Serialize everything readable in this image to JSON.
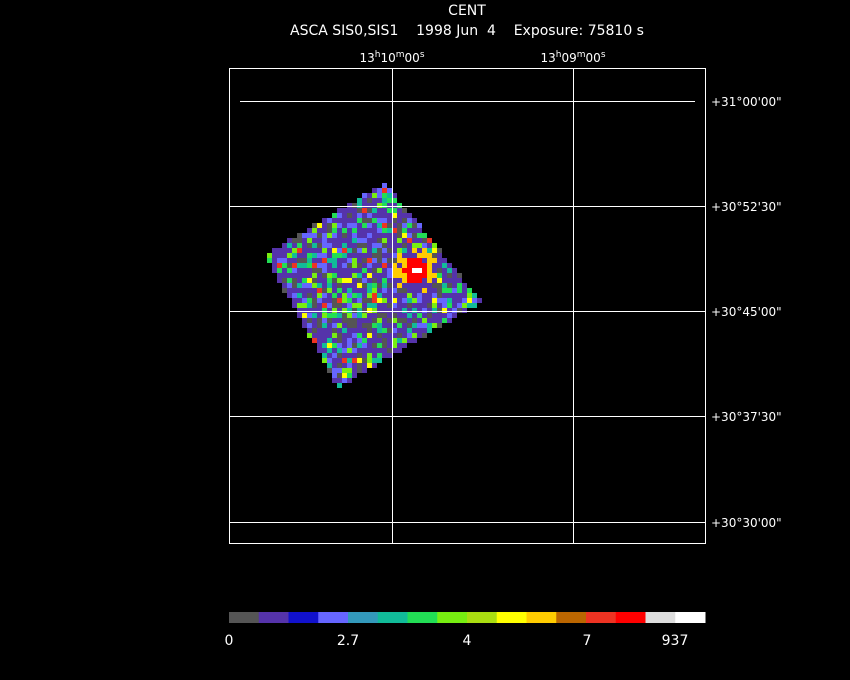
{
  "header": {
    "title": "CENT",
    "subtitle": "ASCA SIS0,SIS1    1998 Jun  4    Exposure: 75810 s"
  },
  "ra_labels": [
    [
      "13",
      "h",
      "10",
      "m",
      "00",
      "s"
    ],
    [
      "13",
      "h",
      "09",
      "m",
      "00",
      "s"
    ]
  ],
  "dec_labels": [
    "+31°00'00\"",
    "+30°52'30\"",
    "+30°45'00\"",
    "+30°37'30\"",
    "+30°30'00\""
  ],
  "colorbar": {
    "colors": [
      "#555555",
      "#5533aa",
      "#1111cc",
      "#6666ff",
      "#3399bb",
      "#11bb99",
      "#22dd55",
      "#77ee11",
      "#aadd11",
      "#ffff00",
      "#ffcc00",
      "#bb6600",
      "#ee3322",
      "#ff0000",
      "#dddddd",
      "#ffffff"
    ],
    "labels": [
      "0",
      "2.7",
      "4",
      "7",
      "937"
    ]
  }
}
